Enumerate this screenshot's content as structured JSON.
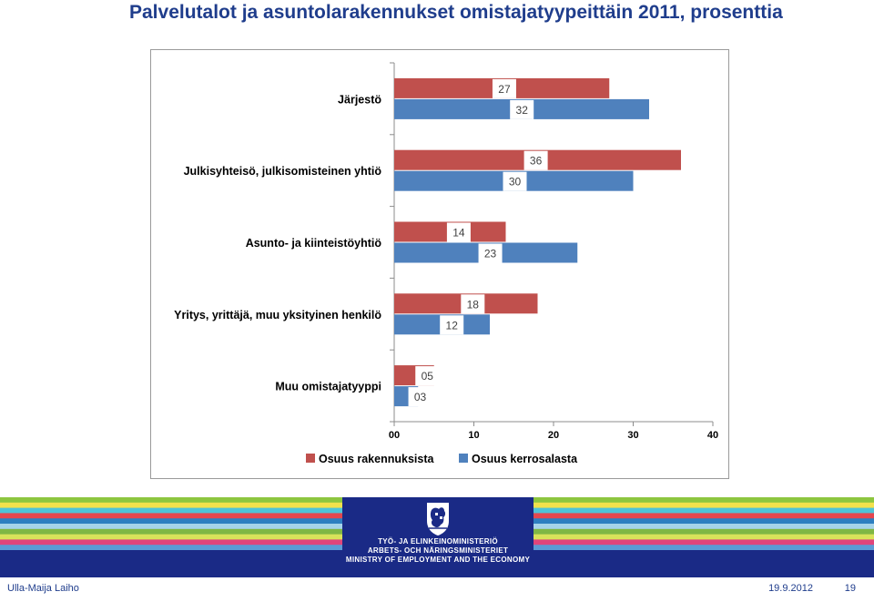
{
  "slide": {
    "title": "Palvelutalot ja asuntolarakennukset omistajatyypeittäin 2011, prosenttia",
    "author": "Ulla-Maija Laiho",
    "date": "19.9.2012",
    "page_number": "19"
  },
  "logo": {
    "lines": [
      "TYÖ- JA ELINKEINOMINISTERIÖ",
      "ARBETS- OCH NÄRINGSMINISTERIET",
      "MINISTRY OF EMPLOYMENT AND THE ECONOMY"
    ],
    "icon": "finnish-lion-crest-icon"
  },
  "colors": {
    "title": "#1f3d8c",
    "series_red": "#c0504d",
    "series_blue": "#4f81bd",
    "footer_navy": "#1a2a86",
    "stripes": [
      "#8dc63f",
      "#f2e14c",
      "#4ec3d8",
      "#e4474f",
      "#2d7fc1",
      "#a6d3ea",
      "#7fb744",
      "#d8e35a",
      "#e0457b",
      "#5b9bd5"
    ]
  },
  "chart_data": {
    "type": "bar",
    "orientation": "horizontal",
    "categories": [
      "Järjestö",
      "Julkisyhteisö, julkisomisteinen yhtiö",
      "Asunto- ja kiinteistöyhtiö",
      "Yritys, yrittäjä, muu yksityinen henkilö",
      "Muu omistajatyyppi"
    ],
    "series": [
      {
        "name": "Osuus rakennuksista",
        "values": [
          27,
          36,
          14,
          18,
          5
        ],
        "labels": [
          "27",
          "36",
          "14",
          "18",
          "05"
        ],
        "color": "#c0504d"
      },
      {
        "name": "Osuus kerrosalasta",
        "values": [
          32,
          30,
          23,
          12,
          3
        ],
        "labels": [
          "32",
          "30",
          "23",
          "12",
          "03"
        ],
        "color": "#4f81bd"
      }
    ],
    "xlim": [
      0,
      40
    ],
    "xticks": [
      0,
      10,
      20,
      30,
      40
    ],
    "xtick_labels": [
      "00",
      "10",
      "20",
      "30",
      "40"
    ],
    "title": "Palvelutalot ja asuntolarakennukset omistajatyypeittäin 2011, prosenttia",
    "xlabel": "",
    "ylabel": "",
    "grid": false,
    "legend_position": "bottom"
  }
}
